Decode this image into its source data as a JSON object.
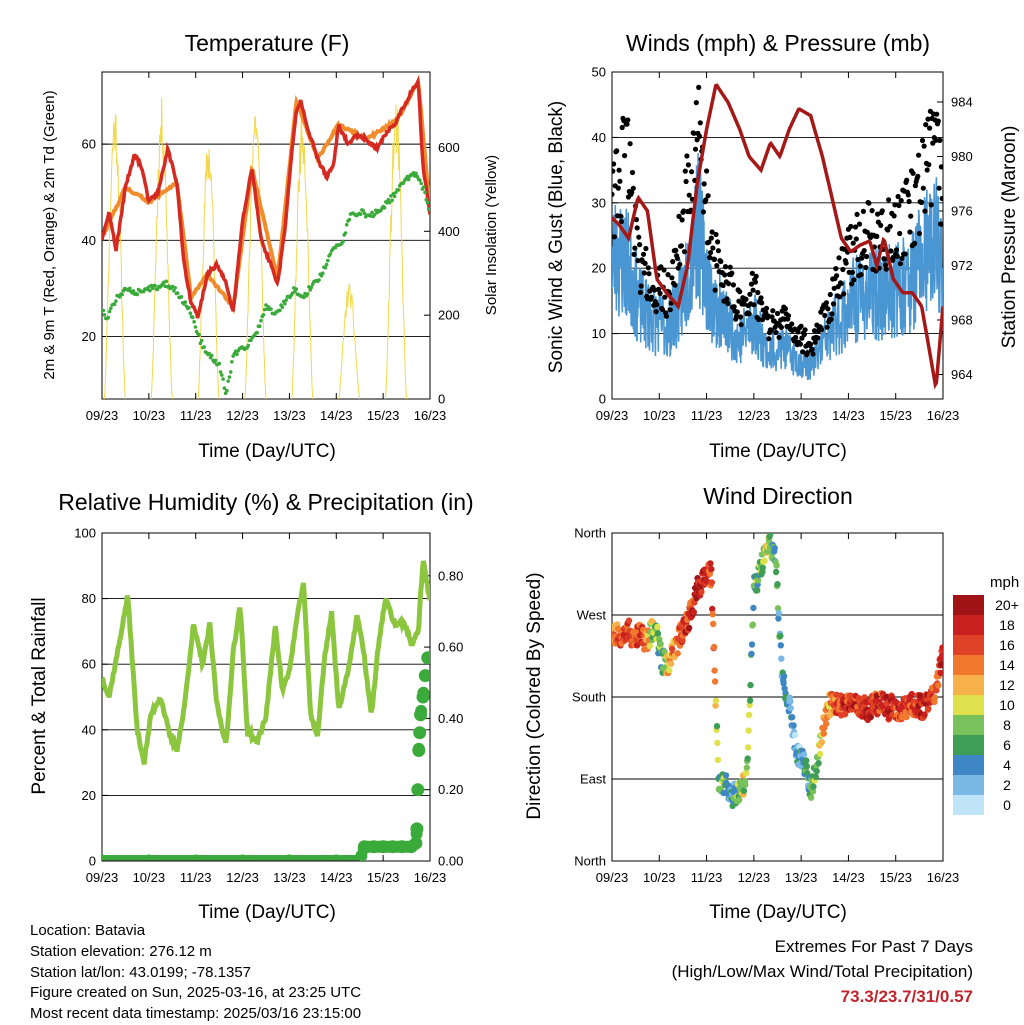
{
  "panels": {
    "temperature": {
      "title": "Temperature (F)",
      "ylabel_left": "2m & 9m T (Red, Orange) & 2m Td (Green)",
      "ylabel_right": "Solar Insolation (Yellow)",
      "xlabel": "Time (Day/UTC)"
    },
    "winds": {
      "title": "Winds (mph) & Pressure (mb)",
      "ylabel_left": "Sonic Wind & Gust (Blue, Black)",
      "ylabel_right": "Station Pressure (Maroon)",
      "xlabel": "Time (Day/UTC)"
    },
    "humidity": {
      "title": "Relative Humidity (%) & Precipitation (in)",
      "ylabel_left": "Percent & Total Rainfall",
      "xlabel": "Time (Day/UTC)"
    },
    "direction": {
      "title": "Wind Direction",
      "ylabel_left": "Direction (Colored By Speed)",
      "xlabel": "Time (Day/UTC)",
      "legend_title": "mph"
    }
  },
  "station_info": {
    "location": "Location: Batavia",
    "elevation": "Station elevation: 276.12 m",
    "latlon": "Station lat/lon: 43.0199; -78.1357",
    "created": "Figure created on Sun, 2025-03-16, at 23:25 UTC",
    "recent": "Most recent data timestamp: 2025/03/16 23:15:00"
  },
  "extremes": {
    "title": "Extremes For Past 7 Days",
    "subtitle": "(High/Low/Max Wind/Total Precipitation)",
    "values": "73.3/23.7/31/0.57"
  },
  "chart_data": [
    {
      "type": "line",
      "id": "temperature",
      "title": "Temperature (F)",
      "xlabel": "Time (Day/UTC)",
      "ylabel": "2m & 9m T (Red, Orange) & 2m Td (Green)",
      "ylabel_right": "Solar Insolation (Yellow)",
      "x_ticks": [
        "09/23",
        "10/23",
        "11/23",
        "12/23",
        "13/23",
        "14/23",
        "15/23",
        "16/23"
      ],
      "xlim": [
        0,
        7
      ],
      "ylim": [
        7,
        75
      ],
      "y_ticks": [
        20,
        40,
        60
      ],
      "ylim_right": [
        0,
        780
      ],
      "y_ticks_right": [
        0,
        200,
        400,
        600
      ],
      "grid": "horizontal",
      "colors": {
        "t2m": "#d42a22",
        "t9m": "#f08c2c",
        "td": "#3aaa3a",
        "solar": "#f2d84c"
      },
      "series": [
        {
          "name": "2m T",
          "style": "line",
          "x": [
            0,
            0.15,
            0.3,
            0.5,
            0.7,
            0.85,
            1,
            1.2,
            1.4,
            1.6,
            1.75,
            1.9,
            2.05,
            2.25,
            2.45,
            2.65,
            2.8,
            3,
            3.2,
            3.4,
            3.6,
            3.75,
            3.9,
            4.05,
            4.15,
            4.25,
            4.4,
            4.6,
            4.8,
            4.95,
            5.05,
            5.25,
            5.45,
            5.65,
            5.85,
            6.05,
            6.3,
            6.55,
            6.75,
            6.85,
            6.95,
            7
          ],
          "values": [
            40,
            46,
            38,
            51,
            58,
            55,
            48,
            50,
            59,
            52,
            35,
            27,
            24,
            33,
            35,
            31,
            25,
            44,
            55,
            40,
            35,
            31,
            42,
            58,
            67,
            69,
            63,
            57,
            53,
            56,
            64,
            60,
            62,
            61,
            59,
            62,
            65,
            70,
            73,
            55,
            49,
            45
          ]
        },
        {
          "name": "9m T",
          "style": "line",
          "x": [
            0,
            0.5,
            1,
            1.6,
            1.9,
            2.25,
            2.8,
            3.2,
            3.75,
            4.15,
            4.6,
            5.05,
            5.65,
            6.3,
            6.75,
            7
          ],
          "values": [
            40.5,
            51,
            48,
            52,
            28,
            33,
            26,
            55,
            32,
            69,
            57,
            64,
            61,
            65,
            73,
            46
          ]
        },
        {
          "name": "2m Td",
          "style": "dots",
          "x": [
            0,
            0.1,
            0.25,
            0.4,
            0.55,
            0.75,
            0.95,
            1.15,
            1.35,
            1.55,
            1.75,
            1.9,
            2.1,
            2.3,
            2.5,
            2.65,
            2.8,
            2.95,
            3.1,
            3.3,
            3.5,
            3.7,
            3.9,
            4.1,
            4.3,
            4.5,
            4.7,
            4.9,
            5.1,
            5.3,
            5.5,
            5.7,
            5.9,
            6.1,
            6.3,
            6.5,
            6.7,
            6.85,
            7
          ],
          "values": [
            26,
            23,
            27,
            29,
            30,
            29,
            30,
            30,
            31,
            30,
            27,
            25,
            19,
            16,
            14,
            8,
            16,
            17,
            18,
            21,
            26,
            25,
            27,
            30,
            28,
            31,
            33,
            38,
            39,
            45,
            46,
            45,
            46,
            48,
            50,
            53,
            54,
            51,
            46
          ]
        },
        {
          "name": "Solar Insolation",
          "axis": "right",
          "style": "thin-line",
          "days": [
            {
              "start": 0.05,
              "end": 0.5,
              "peak": 720
            },
            {
              "start": 1.05,
              "end": 1.5,
              "peak": 720
            },
            {
              "start": 2.05,
              "end": 2.5,
              "peak": 640
            },
            {
              "start": 3.05,
              "end": 3.5,
              "peak": 730
            },
            {
              "start": 4.05,
              "end": 4.5,
              "peak": 710
            },
            {
              "start": 5.05,
              "end": 5.5,
              "peak": 280
            },
            {
              "start": 6.05,
              "end": 6.5,
              "peak": 720
            }
          ]
        }
      ]
    },
    {
      "type": "scatter",
      "id": "winds",
      "title": "Winds (mph) & Pressure (mb)",
      "xlabel": "Time (Day/UTC)",
      "ylabel": "Sonic Wind & Gust (Blue, Black)",
      "ylabel_right": "Station Pressure (Maroon)",
      "x_ticks": [
        "09/23",
        "10/23",
        "11/23",
        "12/23",
        "13/23",
        "14/23",
        "15/23",
        "16/23"
      ],
      "xlim": [
        0,
        7
      ],
      "ylim": [
        0,
        50
      ],
      "y_ticks": [
        0,
        10,
        20,
        30,
        40,
        50
      ],
      "ylim_right": [
        962.2,
        986.2
      ],
      "y_ticks_right": [
        964,
        968,
        972,
        976,
        980,
        984
      ],
      "grid": "horizontal",
      "colors": {
        "wind": "#4a96d2",
        "gust": "#000000",
        "pressure": "#a51818"
      },
      "series": [
        {
          "name": "Sonic Wind",
          "style": "band",
          "x": [
            0,
            0.3,
            0.6,
            0.9,
            1.2,
            1.5,
            1.8,
            2.1,
            2.4,
            2.7,
            3,
            3.3,
            3.6,
            3.9,
            4.2,
            4.5,
            4.8,
            5.1,
            5.4,
            5.7,
            6,
            6.3,
            6.6,
            6.9,
            7
          ],
          "values": [
            22,
            21,
            14,
            12,
            11,
            16,
            27,
            15,
            12,
            9,
            12,
            7,
            8,
            6,
            5,
            9,
            12,
            15,
            16,
            16,
            17,
            18,
            22,
            24,
            17
          ]
        },
        {
          "name": "Gust",
          "style": "dots",
          "x": [
            0,
            0.3,
            0.6,
            0.9,
            1.2,
            1.5,
            1.8,
            2.1,
            2.4,
            2.7,
            3,
            3.3,
            3.6,
            3.9,
            4.2,
            4.5,
            4.8,
            5.1,
            5.4,
            5.7,
            6,
            6.3,
            6.6,
            6.9,
            7
          ],
          "values": [
            29,
            38,
            20,
            17,
            16,
            26,
            43,
            22,
            18,
            14,
            17,
            11,
            12,
            10,
            8,
            13,
            18,
            23,
            25,
            24,
            26,
            28,
            34,
            42,
            25
          ]
        },
        {
          "name": "Station Pressure",
          "axis": "right",
          "style": "line",
          "x": [
            0,
            0.15,
            0.35,
            0.55,
            0.75,
            0.95,
            1.15,
            1.4,
            1.6,
            1.8,
            2,
            2.2,
            2.45,
            2.7,
            2.9,
            3.15,
            3.35,
            3.55,
            3.75,
            3.95,
            4.2,
            4.45,
            4.65,
            4.85,
            5.05,
            5.25,
            5.45,
            5.6,
            5.75,
            5.95,
            6.15,
            6.35,
            6.55,
            6.7,
            6.85,
            7
          ],
          "values": [
            975.5,
            975,
            974,
            977,
            976,
            971,
            970,
            969,
            972,
            978,
            982,
            985.3,
            984,
            982,
            980,
            979,
            981,
            980,
            982,
            983.5,
            983,
            980,
            977,
            974,
            973,
            973.5,
            973.8,
            972,
            974,
            971,
            970,
            970,
            969,
            966,
            963,
            969
          ]
        }
      ]
    },
    {
      "type": "line",
      "id": "humidity",
      "title": "Relative Humidity (%) & Precipitation (in)",
      "xlabel": "Time (Day/UTC)",
      "ylabel": "Percent & Total Rainfall",
      "x_ticks": [
        "09/23",
        "10/23",
        "11/23",
        "12/23",
        "13/23",
        "14/23",
        "15/23",
        "16/23"
      ],
      "xlim": [
        0,
        7
      ],
      "ylim": [
        0,
        100
      ],
      "y_ticks": [
        0,
        20,
        40,
        60,
        80,
        100
      ],
      "ylim_right": [
        0,
        0.92
      ],
      "y_ticks_right": [
        "0.00",
        "0.20",
        "0.40",
        "0.60",
        "0.80"
      ],
      "grid": "horizontal",
      "colors": {
        "rh": "#8cc63f",
        "precip": "#3aaa3a"
      },
      "series": [
        {
          "name": "Relative Humidity",
          "style": "line",
          "x": [
            0,
            0.15,
            0.35,
            0.55,
            0.75,
            0.9,
            1.05,
            1.25,
            1.45,
            1.6,
            1.75,
            1.95,
            2.15,
            2.3,
            2.45,
            2.65,
            2.8,
            2.95,
            3.1,
            3.3,
            3.5,
            3.7,
            3.85,
            4,
            4.15,
            4.3,
            4.45,
            4.6,
            4.75,
            4.9,
            5.05,
            5.25,
            5.45,
            5.6,
            5.75,
            5.9,
            6.05,
            6.25,
            6.45,
            6.6,
            6.75,
            6.85,
            7
          ],
          "values": [
            56,
            50,
            65,
            81,
            40,
            30,
            45,
            50,
            38,
            34,
            46,
            72,
            60,
            72,
            48,
            35,
            64,
            78,
            40,
            36,
            44,
            72,
            52,
            58,
            73,
            85,
            45,
            38,
            62,
            76,
            46,
            58,
            75,
            62,
            44,
            66,
            80,
            72,
            73,
            66,
            70,
            92,
            79
          ]
        },
        {
          "name": "Total Rainfall",
          "axis": "right",
          "style": "dots",
          "x": [
            0,
            1,
            2,
            3,
            4,
            5,
            5.5,
            5.6,
            5.8,
            6,
            6.2,
            6.4,
            6.6,
            6.7,
            6.72,
            6.74,
            6.76,
            6.78,
            6.8,
            6.85,
            6.9,
            6.95
          ],
          "values": [
            0,
            0,
            0,
            0,
            0,
            0,
            0,
            0.04,
            0.04,
            0.04,
            0.04,
            0.04,
            0.04,
            0.05,
            0.09,
            0.2,
            0.31,
            0.36,
            0.41,
            0.46,
            0.52,
            0.57
          ]
        }
      ]
    },
    {
      "type": "scatter",
      "id": "direction",
      "title": "Wind Direction",
      "xlabel": "Time (Day/UTC)",
      "ylabel": "Direction (Colored By Speed)",
      "x_ticks": [
        "09/23",
        "10/23",
        "11/23",
        "12/23",
        "13/23",
        "14/23",
        "15/23",
        "16/23"
      ],
      "xlim": [
        0,
        7
      ],
      "ylim": [
        0,
        360
      ],
      "y_ticks": [
        "North",
        "East",
        "South",
        "West",
        "North"
      ],
      "grid": "horizontal",
      "colorbar": {
        "title": "mph",
        "labels": [
          "0",
          "2",
          "4",
          "6",
          "8",
          "10",
          "12",
          "14",
          "16",
          "18",
          "20+"
        ],
        "colors": [
          "#bfe3f7",
          "#7ab8e6",
          "#3f86c4",
          "#3f9e56",
          "#79c15b",
          "#dfe14c",
          "#f7b14a",
          "#f0782f",
          "#e04227",
          "#c8201f",
          "#a01316"
        ]
      },
      "series": [
        {
          "name": "Direction",
          "style": "dots",
          "x": [
            0,
            0.15,
            0.3,
            0.45,
            0.6,
            0.75,
            0.9,
            1.05,
            1.2,
            1.35,
            1.5,
            1.65,
            1.8,
            1.95,
            2.1,
            2.25,
            2.4,
            2.55,
            2.7,
            2.85,
            3,
            3.15,
            3.3,
            3.45,
            3.6,
            3.75,
            3.9,
            4.05,
            4.2,
            4.35,
            4.5,
            4.65,
            4.8,
            4.95,
            5.1,
            5.25,
            5.4,
            5.55,
            5.7,
            5.85,
            6,
            6.15,
            6.3,
            6.45,
            6.6,
            6.75,
            6.9,
            7
          ],
          "values": [
            250,
            248,
            255,
            245,
            250,
            240,
            260,
            220,
            215,
            235,
            255,
            270,
            300,
            310,
            315,
            90,
            85,
            70,
            80,
            90,
            300,
            320,
            350,
            340,
            200,
            170,
            120,
            110,
            80,
            105,
            160,
            175,
            170,
            172,
            178,
            170,
            165,
            175,
            172,
            168,
            170,
            165,
            170,
            172,
            168,
            175,
            200,
            230
          ],
          "speeds": [
            14,
            16,
            16,
            15,
            17,
            12,
            8,
            6,
            12,
            14,
            16,
            17,
            18,
            18,
            16,
            8,
            6,
            4,
            10,
            8,
            6,
            8,
            10,
            6,
            4,
            4,
            2,
            4,
            6,
            8,
            12,
            14,
            16,
            17,
            18,
            16,
            18,
            17,
            16,
            18,
            17,
            16,
            16,
            17,
            18,
            16,
            16,
            18
          ]
        }
      ]
    }
  ]
}
